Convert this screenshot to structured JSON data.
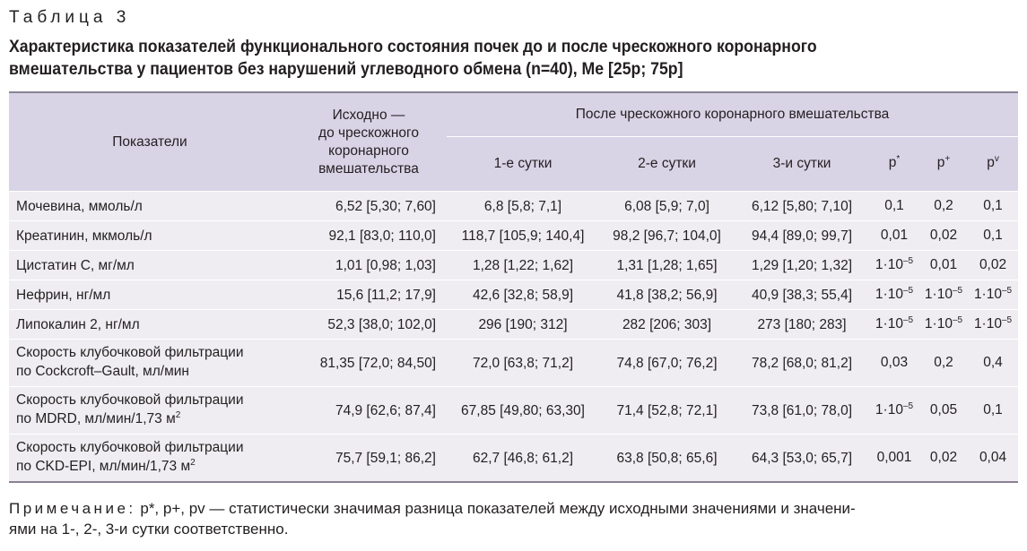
{
  "table_label": "Таблица 3",
  "caption": {
    "line1": "Характеристика показателей функционального состояния почек до и после чрескожного коронарного",
    "line2": "вмешательства у пациентов без нарушений углеводного обмена (n=40), Me [25p; 75p]"
  },
  "header": {
    "indicators": "Показатели",
    "baseline_line1": "Исходно —",
    "baseline_line2": "до чрескожного",
    "baseline_line3": "коронарного",
    "baseline_line4": "вмешательства",
    "after_pci": "После чрескожного коронарного вмешательства",
    "day1": "1-е сутки",
    "day2": "2-е сутки",
    "day3": "3-и сутки",
    "p1": "p",
    "p1_sup": "*",
    "p2": "p",
    "p2_sup": "+",
    "p3": "p",
    "p3_sup": "v"
  },
  "rows": [
    {
      "name": "Мочевина, ммоль/л",
      "baseline": "6,52 [5,30; 7,60]",
      "day1": "6,8 [5,8; 7,1]",
      "day2": "6,08 [5,9; 7,0]",
      "day3": "6,12 [5,80; 7,10]",
      "p1": "0,1",
      "p1_exp": "",
      "p2": "0,2",
      "p2_exp": "",
      "p3": "0,1",
      "p3_exp": ""
    },
    {
      "name": "Креатинин, мкмоль/л",
      "baseline": "92,1 [83,0; 110,0]",
      "day1": "118,7 [105,9; 140,4]",
      "day2": "98,2 [96,7; 104,0]",
      "day3": "94,4 [89,0; 99,7]",
      "p1": "0,01",
      "p1_exp": "",
      "p2": "0,02",
      "p2_exp": "",
      "p3": "0,1",
      "p3_exp": ""
    },
    {
      "name": "Цистатин С, мг/мл",
      "baseline": "1,01 [0,98; 1,03]",
      "day1": "1,28 [1,22; 1,62]",
      "day2": "1,31 [1,28; 1,65]",
      "day3": "1,29 [1,20; 1,32]",
      "p1": "1·10",
      "p1_exp": "–5",
      "p2": "0,01",
      "p2_exp": "",
      "p3": "0,02",
      "p3_exp": ""
    },
    {
      "name": "Нефрин, нг/мл",
      "baseline": "15,6 [11,2; 17,9]",
      "day1": "42,6 [32,8; 58,9]",
      "day2": "41,8 [38,2; 56,9]",
      "day3": "40,9 [38,3; 55,4]",
      "p1": "1·10",
      "p1_exp": "–5",
      "p2": "1·10",
      "p2_exp": "–5",
      "p3": "1·10",
      "p3_exp": "–5"
    },
    {
      "name": "Липокалин 2, нг/мл",
      "baseline": "52,3 [38,0; 102,0]",
      "day1": "296 [190; 312]",
      "day2": "282 [206; 303]",
      "day3": "273 [180; 283]",
      "p1": "1·10",
      "p1_exp": "–5",
      "p2": "1·10",
      "p2_exp": "–5",
      "p3": "1·10",
      "p3_exp": "–5"
    },
    {
      "name_line1": "Скорость клубочковой фильтрации",
      "name_line2": "по Cockcroft–Gault, мл/мин",
      "name_sup": "",
      "baseline": "81,35 [72,0; 84,50]",
      "day1": "72,0 [63,8; 71,2]",
      "day2": "74,8 [67,0; 76,2]",
      "day3": "78,2 [68,0; 81,2]",
      "p1": "0,03",
      "p1_exp": "",
      "p2": "0,2",
      "p2_exp": "",
      "p3": "0,4",
      "p3_exp": ""
    },
    {
      "name_line1": "Скорость клубочковой фильтрации",
      "name_line2": "по MDRD, мл/мин/1,73 м",
      "name_sup": "2",
      "baseline": "74,9 [62,6; 87,4]",
      "day1": "67,85 [49,80; 63,30]",
      "day2": "71,4 [52,8; 72,1]",
      "day3": "73,8 [61,0; 78,0]",
      "p1": "1·10",
      "p1_exp": "–5",
      "p2": "0,05",
      "p2_exp": "",
      "p3": "0,1",
      "p3_exp": ""
    },
    {
      "name_line1": "Скорость клубочковой фильтрации",
      "name_line2": "по CKD-EPI, мл/мин/1,73 м",
      "name_sup": "2",
      "baseline": "75,7 [59,1; 86,2]",
      "day1": "62,7 [46,8; 61,2]",
      "day2": "63,8 [50,8; 65,6]",
      "day3": "64,3 [53,0; 65,7]",
      "p1": "0,001",
      "p1_exp": "",
      "p2": "0,02",
      "p2_exp": "",
      "p3": "0,04",
      "p3_exp": ""
    }
  ],
  "note": {
    "lead": "Примечание:",
    "line1": "p*, p+, pv — статистически значимая разница показателей между исходными значениями и значени-",
    "line2": "ями на 1-, 2-, 3-и сутки соответственно."
  }
}
